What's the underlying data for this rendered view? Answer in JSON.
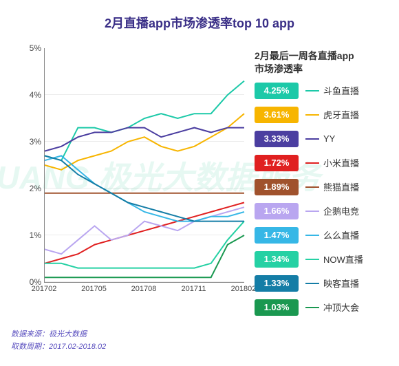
{
  "title": {
    "text": "2月直播app市场渗透率top 10 app",
    "fontsize": 18,
    "color": "#3a2f87"
  },
  "chart": {
    "type": "line",
    "x_labels": [
      "201702",
      "201705",
      "201708",
      "201711",
      "201802"
    ],
    "ylim": [
      0,
      5
    ],
    "ytick_step": 1,
    "ytick_suffix": "%",
    "grid_color": "rgba(0,0,0,0.08)",
    "background_color": "#ffffff",
    "watermark": "JIGUANG  极光大数据服务",
    "line_width": 2,
    "series": [
      {
        "name": "斗鱼直播",
        "color": "#1cc9a8",
        "values": [
          2.7,
          2.6,
          3.3,
          3.3,
          3.2,
          3.3,
          3.5,
          3.6,
          3.5,
          3.6,
          3.6,
          4.0,
          4.3
        ]
      },
      {
        "name": "虎牙直播",
        "color": "#f7b500",
        "values": [
          2.5,
          2.4,
          2.6,
          2.7,
          2.8,
          3.0,
          3.1,
          2.9,
          2.8,
          2.9,
          3.1,
          3.3,
          3.6
        ]
      },
      {
        "name": "YY",
        "color": "#4b3ea0",
        "values": [
          2.8,
          2.9,
          3.1,
          3.2,
          3.2,
          3.3,
          3.3,
          3.1,
          3.2,
          3.3,
          3.2,
          3.3,
          3.3
        ]
      },
      {
        "name": "小米直播",
        "color": "#e02020",
        "values": [
          0.4,
          0.5,
          0.6,
          0.8,
          0.9,
          1.0,
          1.1,
          1.2,
          1.3,
          1.4,
          1.5,
          1.6,
          1.7
        ]
      },
      {
        "name": "熊猫直播",
        "color": "#a0522d",
        "values": [
          1.9,
          1.9,
          1.9,
          1.9,
          1.9,
          1.9,
          1.9,
          1.9,
          1.9,
          1.9,
          1.9,
          1.9,
          1.9
        ]
      },
      {
        "name": "企鹅电竞",
        "color": "#b9a6f0",
        "values": [
          0.7,
          0.6,
          0.9,
          1.2,
          0.9,
          1.0,
          1.3,
          1.2,
          1.1,
          1.3,
          1.4,
          1.5,
          1.6
        ]
      },
      {
        "name": "么么直播",
        "color": "#36b7e6",
        "values": [
          2.6,
          2.7,
          2.4,
          2.1,
          1.9,
          1.7,
          1.5,
          1.4,
          1.3,
          1.3,
          1.4,
          1.4,
          1.5
        ]
      },
      {
        "name": "NOW直播",
        "color": "#25d1a4",
        "values": [
          0.4,
          0.4,
          0.3,
          0.3,
          0.3,
          0.3,
          0.3,
          0.3,
          0.3,
          0.3,
          0.4,
          0.9,
          1.3
        ]
      },
      {
        "name": "映客直播",
        "color": "#147da6",
        "values": [
          2.7,
          2.6,
          2.3,
          2.1,
          1.9,
          1.7,
          1.6,
          1.5,
          1.4,
          1.3,
          1.3,
          1.3,
          1.3
        ]
      },
      {
        "name": "冲顶大会",
        "color": "#1a9850",
        "values": [
          0.1,
          0.1,
          0.1,
          0.1,
          0.1,
          0.1,
          0.1,
          0.1,
          0.1,
          0.1,
          0.1,
          0.8,
          1.0
        ]
      }
    ]
  },
  "legend": {
    "header_line1": "2月最后一周各直播app",
    "header_line2": "市场渗透率",
    "items": [
      {
        "value": "4.25%",
        "name": "斗鱼直播",
        "color": "#1cc9a8"
      },
      {
        "value": "3.61%",
        "name": "虎牙直播",
        "color": "#f7b500"
      },
      {
        "value": "3.33%",
        "name": "YY",
        "color": "#4b3ea0"
      },
      {
        "value": "1.72%",
        "name": "小米直播",
        "color": "#e02020"
      },
      {
        "value": "1.89%",
        "name": "熊猫直播",
        "color": "#a0522d"
      },
      {
        "value": "1.66%",
        "name": "企鹅电竞",
        "color": "#b9a6f0"
      },
      {
        "value": "1.47%",
        "name": "么么直播",
        "color": "#36b7e6"
      },
      {
        "value": "1.34%",
        "name": "NOW直播",
        "color": "#25d1a4"
      },
      {
        "value": "1.33%",
        "name": "映客直播",
        "color": "#147da6"
      },
      {
        "value": "1.03%",
        "name": "冲顶大会",
        "color": "#1a9850"
      }
    ]
  },
  "footer": {
    "source_label": "数据来源：",
    "source_value": "极光大数据",
    "period_label": "取数周期：",
    "period_value": "2017.02-2018.02",
    "color": "#5a4fbf"
  }
}
